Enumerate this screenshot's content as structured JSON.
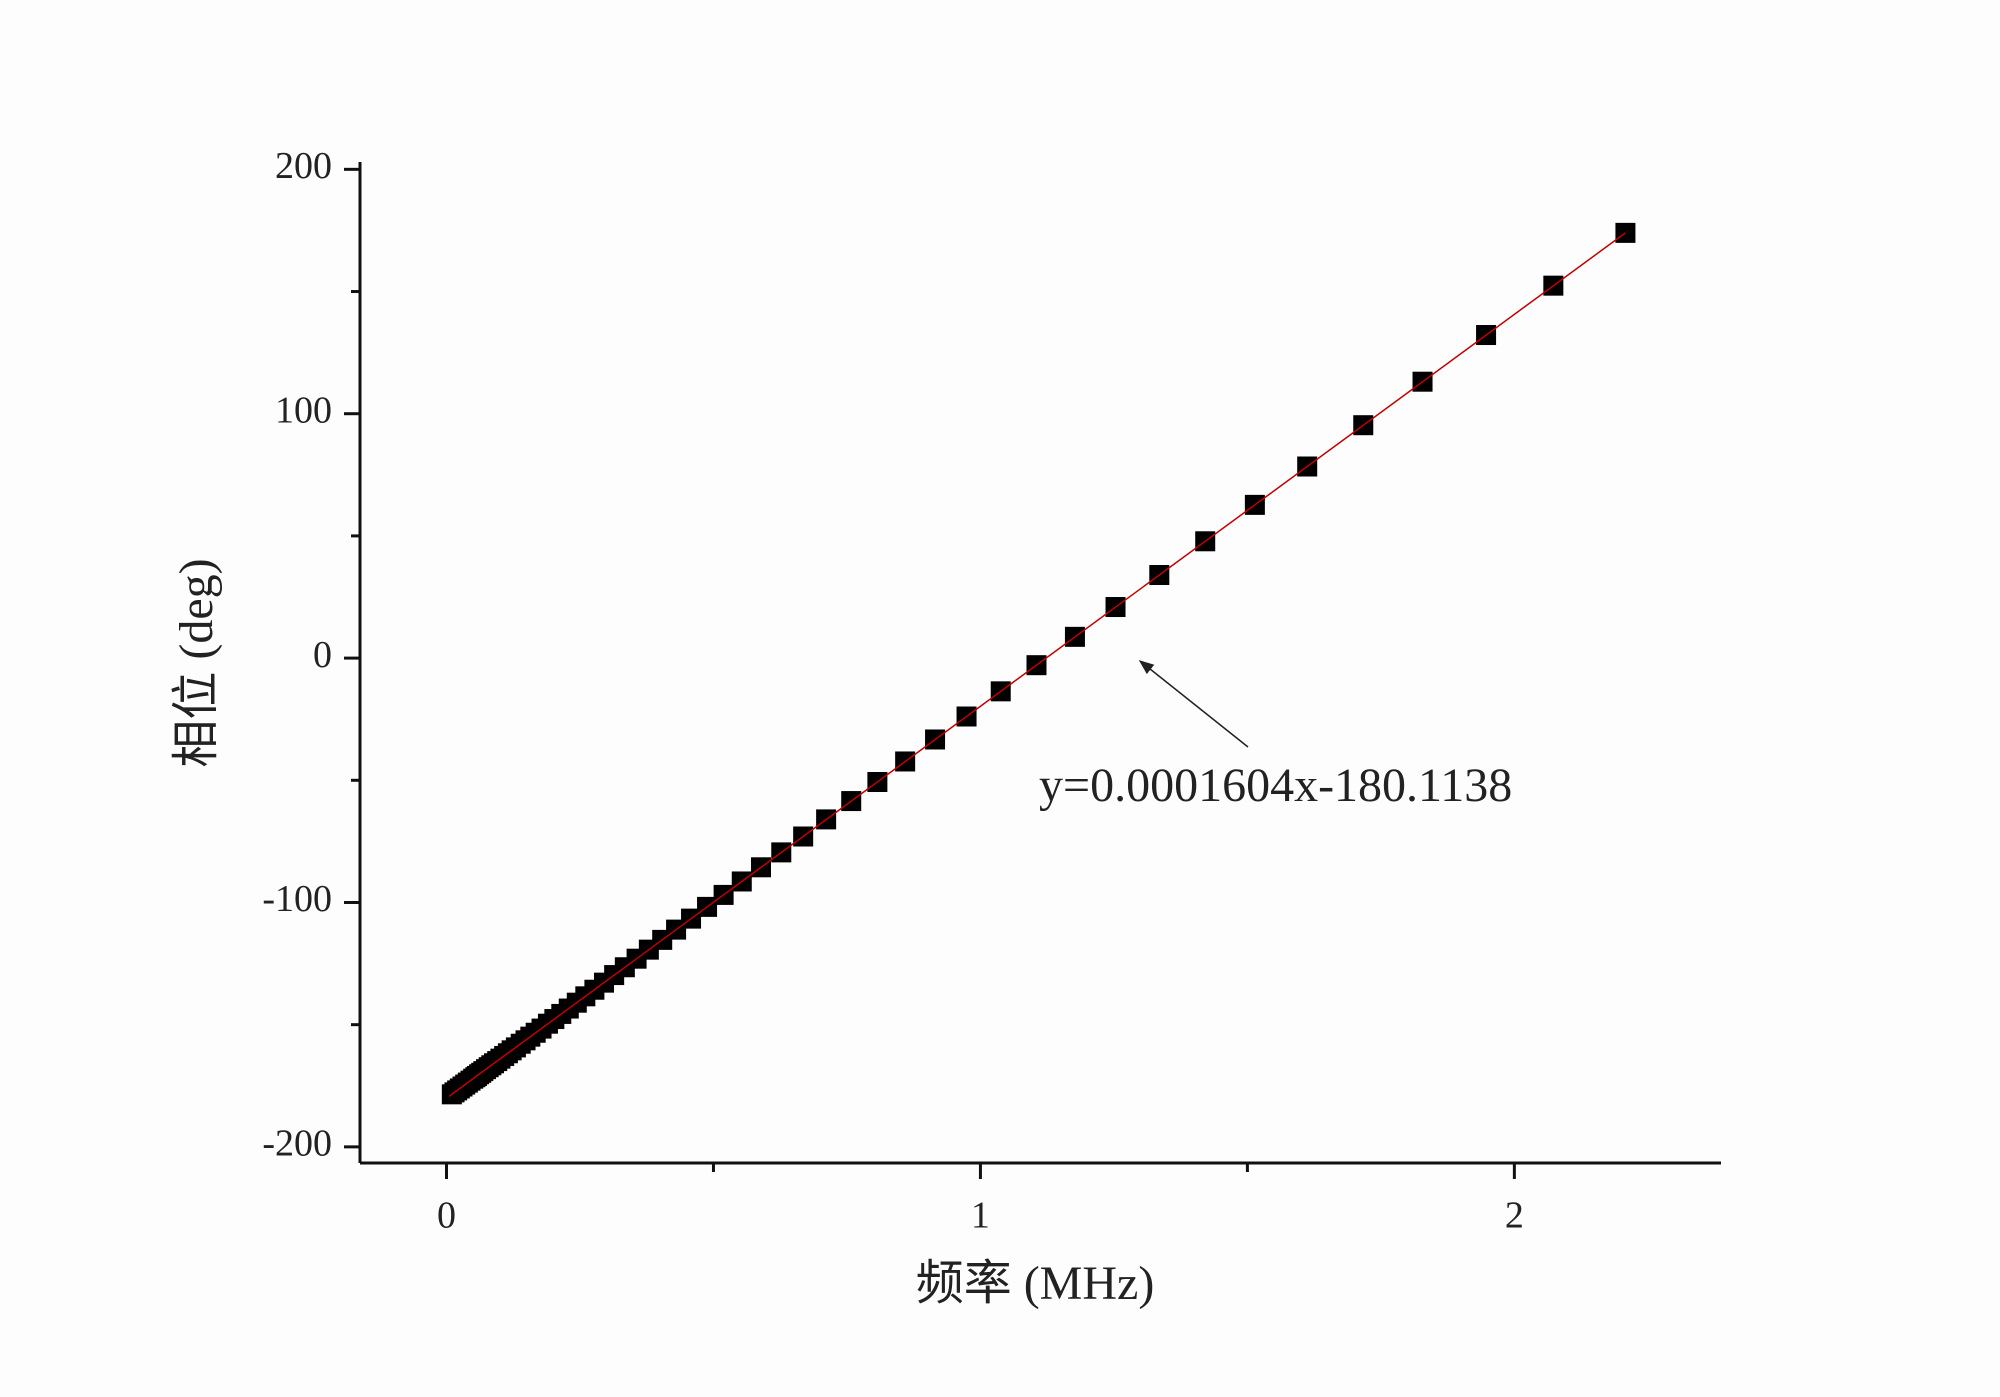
{
  "chart_data": {
    "type": "scatter",
    "x_label": "频率 (MHz)",
    "y_label": "相位 (deg)",
    "annotation": "y=0.0001604x-180.1138",
    "xlim": [
      -0.162,
      2.387
    ],
    "ylim": [
      -206.6,
      203
    ],
    "xticks": [
      0,
      1,
      2
    ],
    "xminorticks": [
      0.5,
      1.5
    ],
    "yticks": [
      -200,
      -100,
      0,
      100,
      200
    ],
    "yminorticks": [
      -150,
      -50,
      50,
      150
    ],
    "marker_color": "#000000",
    "x": [
      0.01,
      0.015,
      0.02,
      0.025,
      0.03,
      0.035,
      0.04,
      0.045,
      0.05,
      0.054,
      0.057,
      0.061,
      0.065,
      0.069,
      0.074,
      0.079,
      0.084,
      0.089,
      0.095,
      0.101,
      0.108,
      0.115,
      0.122,
      0.13,
      0.139,
      0.148,
      0.157,
      0.167,
      0.178,
      0.19,
      0.202,
      0.215,
      0.229,
      0.244,
      0.26,
      0.277,
      0.295,
      0.314,
      0.334,
      0.356,
      0.379,
      0.404,
      0.43,
      0.458,
      0.488,
      0.519,
      0.553,
      0.589,
      0.627,
      0.668,
      0.711,
      0.758,
      0.807,
      0.859,
      0.915,
      0.974,
      1.038,
      1.105,
      1.177,
      1.253,
      1.335,
      1.421,
      1.514,
      1.612,
      1.717,
      1.828,
      1.947,
      2.073,
      2.208
    ],
    "values": [
      -178.5,
      -177.7,
      -176.9,
      -176.1,
      -175.3,
      -174.5,
      -173.7,
      -172.9,
      -172.1,
      -171.5,
      -171.0,
      -170.3,
      -169.7,
      -169.0,
      -168.2,
      -167.4,
      -166.6,
      -165.8,
      -164.9,
      -163.9,
      -162.8,
      -161.7,
      -160.5,
      -159.3,
      -157.8,
      -156.4,
      -154.9,
      -153.3,
      -151.6,
      -149.6,
      -147.7,
      -145.6,
      -143.4,
      -141.0,
      -138.4,
      -135.7,
      -132.8,
      -129.7,
      -126.5,
      -123.0,
      -119.3,
      -115.3,
      -111.1,
      -106.6,
      -101.8,
      -96.9,
      -91.4,
      -85.6,
      -79.5,
      -73.0,
      -66.0,
      -58.5,
      -50.7,
      -42.3,
      -33.3,
      -23.9,
      -13.6,
      -2.9,
      8.7,
      20.9,
      34.0,
      47.8,
      62.7,
      78.4,
      95.3,
      113.1,
      132.2,
      152.4,
      174.0
    ],
    "fit": {
      "x": [
        0.005,
        2.208
      ],
      "values": [
        -179.3,
        174.0
      ],
      "color": "#c00000"
    }
  }
}
